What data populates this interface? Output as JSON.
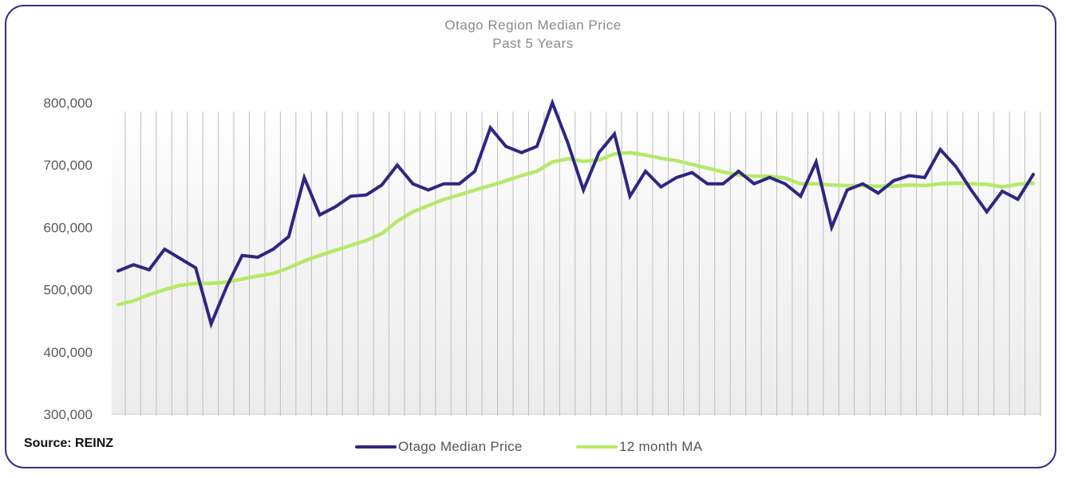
{
  "chart_data": {
    "type": "line",
    "title": "Otago Region Median Price",
    "subtitle": "Past 5 Years",
    "source": "Source: REINZ",
    "ylim": [
      300000,
      800000
    ],
    "yticks": [
      "800,000",
      "700,000",
      "600,000",
      "500,000",
      "400,000",
      "300,000"
    ],
    "ytick_values": [
      800000,
      700000,
      600000,
      500000,
      400000,
      300000
    ],
    "grid": "vertical bars per month",
    "legend_position": "bottom-center",
    "series": [
      {
        "name": "Otago Median Price",
        "color": "#2e2683",
        "values": [
          530000,
          540000,
          532000,
          565000,
          550000,
          535000,
          445000,
          505000,
          555000,
          552000,
          565000,
          585000,
          680000,
          620000,
          633000,
          650000,
          652000,
          668000,
          700000,
          670000,
          660000,
          670000,
          670000,
          690000,
          760000,
          730000,
          720000,
          730000,
          800000,
          735000,
          660000,
          720000,
          750000,
          650000,
          690000,
          665000,
          680000,
          688000,
          670000,
          670000,
          690000,
          670000,
          680000,
          670000,
          650000,
          705000,
          600000,
          660000,
          670000,
          655000,
          675000,
          683000,
          680000,
          725000,
          698000,
          660000,
          625000,
          658000,
          645000,
          685000
        ]
      },
      {
        "name": "12 month MA",
        "color": "#b6e86a",
        "values": [
          476000,
          482000,
          492000,
          500000,
          507000,
          510000,
          510000,
          512000,
          517000,
          522000,
          526000,
          535000,
          546000,
          555000,
          563000,
          571000,
          579000,
          590000,
          610000,
          625000,
          635000,
          645000,
          652000,
          660000,
          667000,
          675000,
          683000,
          690000,
          705000,
          710000,
          706000,
          708000,
          718000,
          720000,
          716000,
          711000,
          707000,
          701000,
          695000,
          689000,
          684000,
          682000,
          682000,
          679000,
          670000,
          670000,
          668000,
          667000,
          667000,
          666000,
          666000,
          668000,
          667000,
          670000,
          671000,
          670000,
          669000,
          665000,
          669000,
          671000
        ]
      }
    ]
  }
}
